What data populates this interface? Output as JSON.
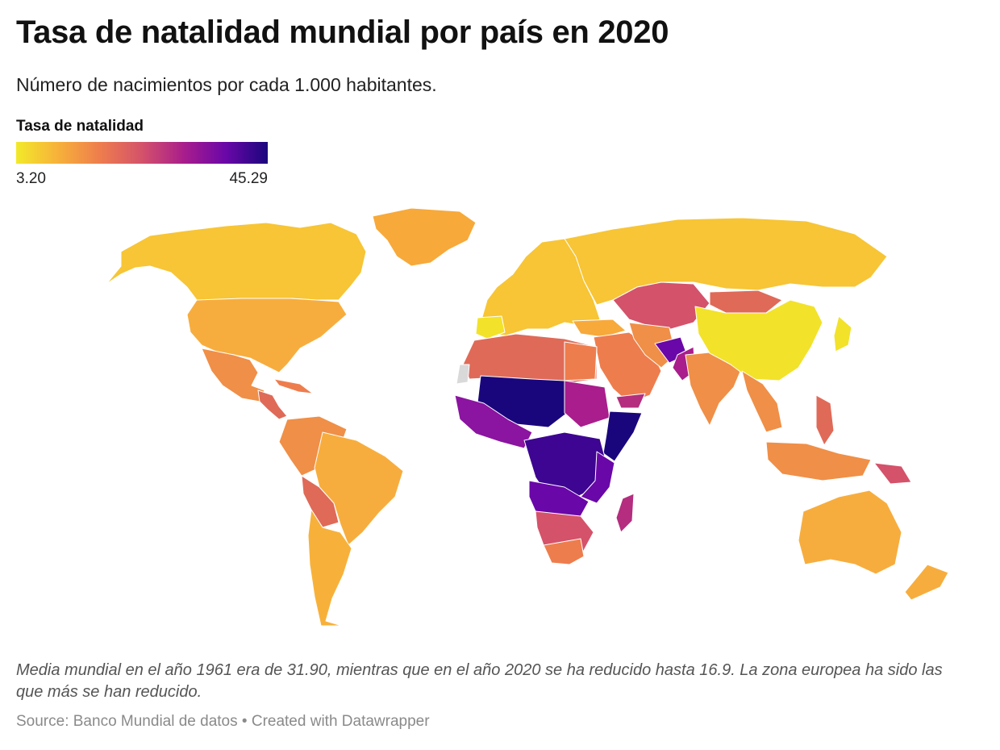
{
  "header": {
    "title": "Tasa de natalidad mundial por país en 2020",
    "subtitle": "Número de nacimientos por cada 1.000 habitantes."
  },
  "legend": {
    "title": "Tasa de natalidad",
    "min_label": "3.20",
    "max_label": "45.29",
    "min_value": 3.2,
    "max_value": 45.29,
    "gradient_colors": [
      "#f2e92a",
      "#f7b13a",
      "#ee7d4d",
      "#d4526a",
      "#a91d8c",
      "#6a07a8",
      "#1a067c"
    ]
  },
  "map": {
    "type": "choropleth",
    "projection": "world",
    "no_data_color": "#d9d9d9",
    "border_color": "#ffffff"
  },
  "notes": {
    "text": "Media mundial en el año 1961 era de 31.90, mientras que en el año 2020 se ha reducido hasta 16.9. La zona europea ha sido las que más se han reducido."
  },
  "footer": {
    "source": "Source: Banco Mundial de datos",
    "separator": " • ",
    "credit": "Created with Datawrapper"
  }
}
